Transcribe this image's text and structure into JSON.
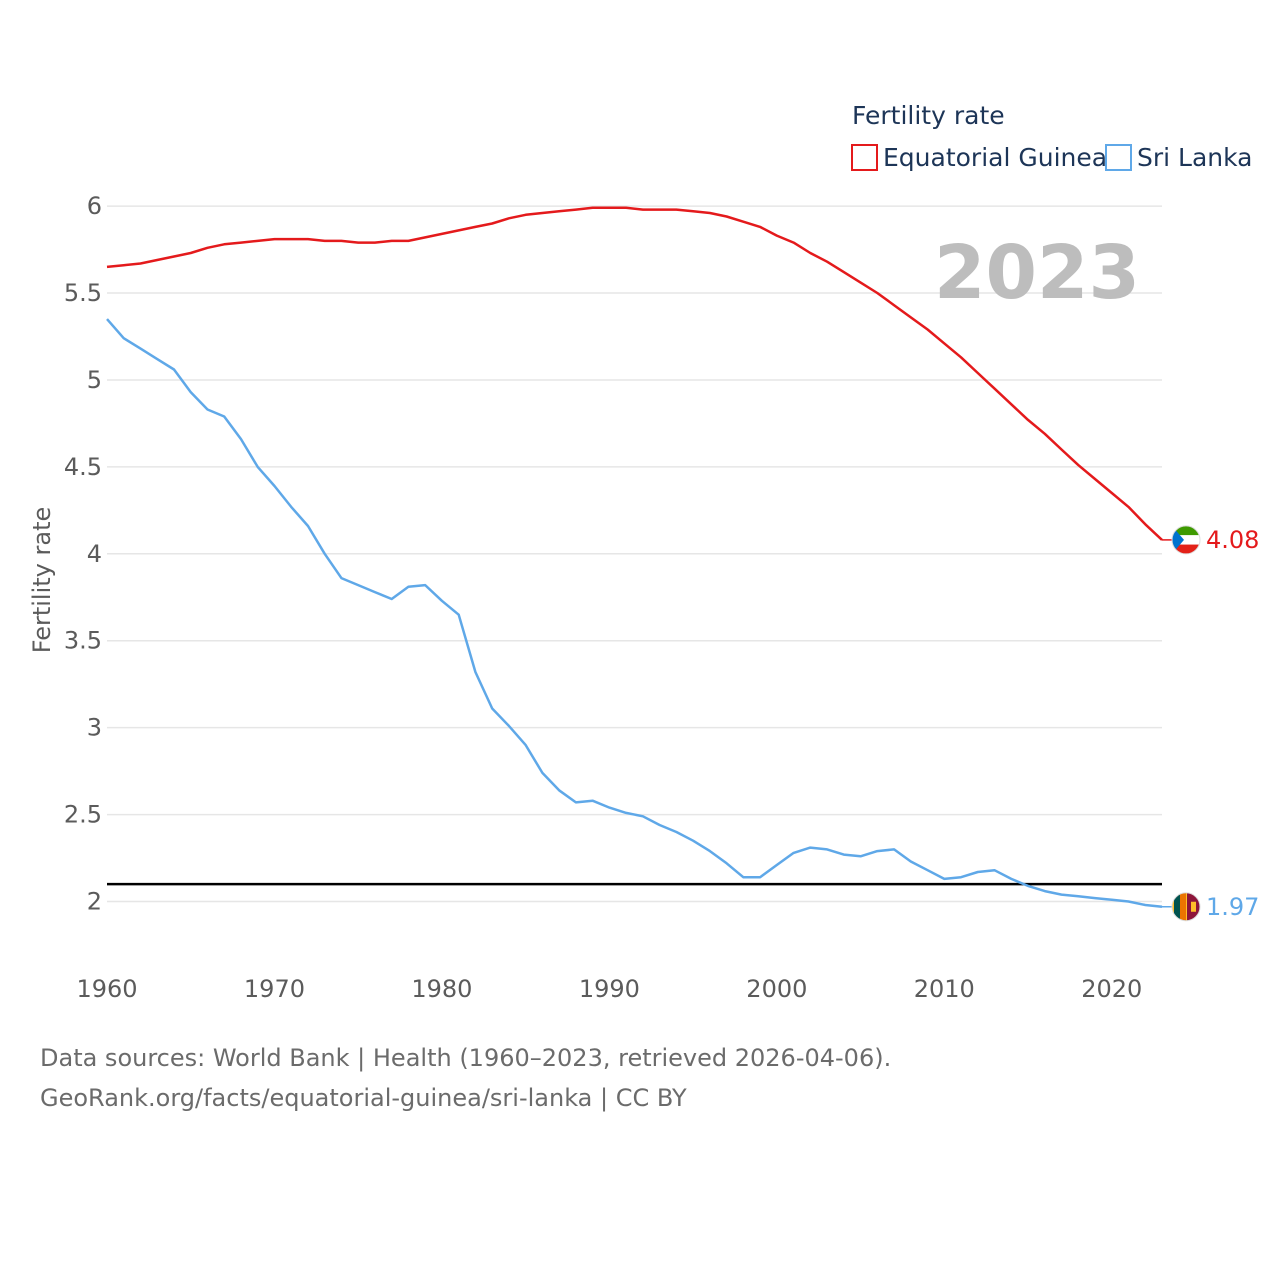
{
  "chart_data": {
    "type": "line",
    "legend_title": "Fertility rate",
    "ylabel": "Fertility rate",
    "year_label": "2023",
    "xlim": [
      1960,
      2023
    ],
    "ylim": [
      1.75,
      6.15
    ],
    "x_ticks": [
      1960,
      1970,
      1980,
      1990,
      2000,
      2010,
      2020
    ],
    "y_ticks": [
      2,
      2.5,
      3,
      3.5,
      4,
      4.5,
      5,
      5.5,
      6
    ],
    "reference_line": {
      "y": 2.1,
      "color": "#000000"
    },
    "series": [
      {
        "name": "Equatorial Guinea",
        "color": "#e41a1c",
        "end_label": "4.08",
        "flag": "equatorial-guinea-flag",
        "x": [
          1960,
          1961,
          1962,
          1963,
          1964,
          1965,
          1966,
          1967,
          1968,
          1969,
          1970,
          1971,
          1972,
          1973,
          1974,
          1975,
          1976,
          1977,
          1978,
          1979,
          1980,
          1981,
          1982,
          1983,
          1984,
          1985,
          1986,
          1987,
          1988,
          1989,
          1990,
          1991,
          1992,
          1993,
          1994,
          1995,
          1996,
          1997,
          1998,
          1999,
          2000,
          2001,
          2002,
          2003,
          2004,
          2005,
          2006,
          2007,
          2008,
          2009,
          2010,
          2011,
          2012,
          2013,
          2014,
          2015,
          2016,
          2017,
          2018,
          2019,
          2020,
          2021,
          2022,
          2023
        ],
        "values": [
          5.65,
          5.66,
          5.67,
          5.69,
          5.71,
          5.73,
          5.76,
          5.78,
          5.79,
          5.8,
          5.81,
          5.81,
          5.81,
          5.8,
          5.8,
          5.79,
          5.79,
          5.8,
          5.8,
          5.82,
          5.84,
          5.86,
          5.88,
          5.9,
          5.93,
          5.95,
          5.96,
          5.97,
          5.98,
          5.99,
          5.99,
          5.99,
          5.98,
          5.98,
          5.98,
          5.97,
          5.96,
          5.94,
          5.91,
          5.88,
          5.83,
          5.79,
          5.73,
          5.68,
          5.62,
          5.56,
          5.5,
          5.43,
          5.36,
          5.29,
          5.21,
          5.13,
          5.04,
          4.95,
          4.86,
          4.77,
          4.69,
          4.6,
          4.51,
          4.43,
          4.35,
          4.27,
          4.17,
          4.08
        ]
      },
      {
        "name": "Sri Lanka",
        "color": "#5fa8e8",
        "end_label": "1.97",
        "flag": "sri-lanka-flag",
        "x": [
          1960,
          1961,
          1962,
          1963,
          1964,
          1965,
          1966,
          1967,
          1968,
          1969,
          1970,
          1971,
          1972,
          1973,
          1974,
          1975,
          1976,
          1977,
          1978,
          1979,
          1980,
          1981,
          1982,
          1983,
          1984,
          1985,
          1986,
          1987,
          1988,
          1989,
          1990,
          1991,
          1992,
          1993,
          1994,
          1995,
          1996,
          1997,
          1998,
          1999,
          2000,
          2001,
          2002,
          2003,
          2004,
          2005,
          2006,
          2007,
          2008,
          2009,
          2010,
          2011,
          2012,
          2013,
          2014,
          2015,
          2016,
          2017,
          2018,
          2019,
          2020,
          2021,
          2022,
          2023
        ],
        "values": [
          5.35,
          5.24,
          5.18,
          5.12,
          5.06,
          4.93,
          4.83,
          4.79,
          4.66,
          4.5,
          4.39,
          4.27,
          4.16,
          4.0,
          3.86,
          3.82,
          3.78,
          3.74,
          3.81,
          3.82,
          3.73,
          3.65,
          3.32,
          3.11,
          3.01,
          2.9,
          2.74,
          2.64,
          2.57,
          2.58,
          2.54,
          2.51,
          2.49,
          2.44,
          2.4,
          2.35,
          2.29,
          2.22,
          2.14,
          2.14,
          2.21,
          2.28,
          2.31,
          2.3,
          2.27,
          2.26,
          2.29,
          2.3,
          2.23,
          2.18,
          2.13,
          2.14,
          2.17,
          2.18,
          2.13,
          2.09,
          2.06,
          2.04,
          2.03,
          2.02,
          2.01,
          2.0,
          1.98,
          1.97
        ]
      }
    ]
  },
  "footer": {
    "line1": "Data sources: World Bank | Health (1960–2023, retrieved 2026-04-06).",
    "line2": "GeoRank.org/facts/equatorial-guinea/sri-lanka | CC BY"
  }
}
